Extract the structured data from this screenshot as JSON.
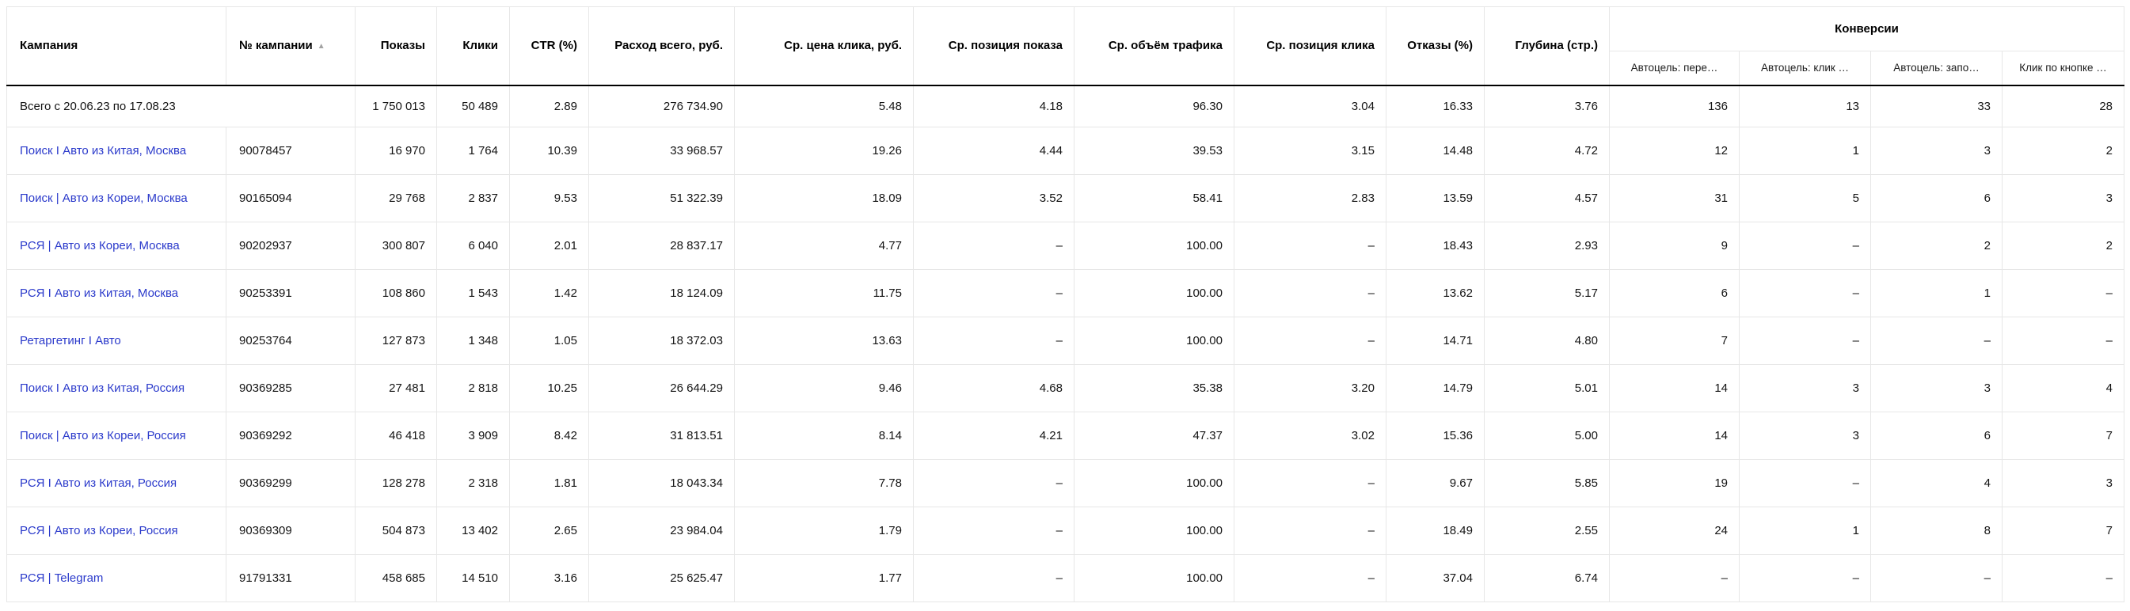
{
  "table": {
    "totals": {
      "label": "Всего с 20.06.23 по 17.08.23",
      "values": [
        "1 750 013",
        "50 489",
        "2.89",
        "276 734.90",
        "5.48",
        "4.18",
        "96.30",
        "3.04",
        "16.33",
        "3.76",
        "136",
        "13",
        "33",
        "28"
      ]
    },
    "headers": {
      "campaign": "Кампания",
      "campaign_id": "№ кампании",
      "sort_icon": "▲",
      "metrics": [
        "Показы",
        "Клики",
        "CTR (%)",
        "Расход всего, руб.",
        "Ср. цена клика, руб.",
        "Ср. позиция показа",
        "Ср. объём трафика",
        "Ср. позиция клика",
        "Отказы (%)",
        "Глубина (стр.)"
      ],
      "conversions_group": "Конверсии",
      "conversions": [
        "Автоцель: пере…",
        "Автоцель: клик …",
        "Автоцель: запо…",
        "Клик по кнопке …"
      ]
    },
    "rows": [
      {
        "campaign": "Поиск I Авто из Китая, Москва",
        "values": [
          "90078457",
          "16 970",
          "1 764",
          "10.39",
          "33 968.57",
          "19.26",
          "4.44",
          "39.53",
          "3.15",
          "14.48",
          "4.72",
          "12",
          "1",
          "3",
          "2"
        ]
      },
      {
        "campaign": "Поиск | Авто из Кореи, Москва",
        "values": [
          "90165094",
          "29 768",
          "2 837",
          "9.53",
          "51 322.39",
          "18.09",
          "3.52",
          "58.41",
          "2.83",
          "13.59",
          "4.57",
          "31",
          "5",
          "6",
          "3"
        ]
      },
      {
        "campaign": "РСЯ | Авто из Кореи, Москва",
        "values": [
          "90202937",
          "300 807",
          "6 040",
          "2.01",
          "28 837.17",
          "4.77",
          "–",
          "100.00",
          "–",
          "18.43",
          "2.93",
          "9",
          "–",
          "2",
          "2"
        ]
      },
      {
        "campaign": "РСЯ I Авто из Китая, Москва",
        "values": [
          "90253391",
          "108 860",
          "1 543",
          "1.42",
          "18 124.09",
          "11.75",
          "–",
          "100.00",
          "–",
          "13.62",
          "5.17",
          "6",
          "–",
          "1",
          "–"
        ]
      },
      {
        "campaign": "Ретаргетинг I Авто",
        "values": [
          "90253764",
          "127 873",
          "1 348",
          "1.05",
          "18 372.03",
          "13.63",
          "–",
          "100.00",
          "–",
          "14.71",
          "4.80",
          "7",
          "–",
          "–",
          "–"
        ]
      },
      {
        "campaign": "Поиск I Авто из Китая, Россия",
        "values": [
          "90369285",
          "27 481",
          "2 818",
          "10.25",
          "26 644.29",
          "9.46",
          "4.68",
          "35.38",
          "3.20",
          "14.79",
          "5.01",
          "14",
          "3",
          "3",
          "4"
        ]
      },
      {
        "campaign": "Поиск | Авто из Кореи, Россия",
        "values": [
          "90369292",
          "46 418",
          "3 909",
          "8.42",
          "31 813.51",
          "8.14",
          "4.21",
          "47.37",
          "3.02",
          "15.36",
          "5.00",
          "14",
          "3",
          "6",
          "7"
        ]
      },
      {
        "campaign": "РСЯ I Авто из Китая, Россия",
        "values": [
          "90369299",
          "128 278",
          "2 318",
          "1.81",
          "18 043.34",
          "7.78",
          "–",
          "100.00",
          "–",
          "9.67",
          "5.85",
          "19",
          "–",
          "4",
          "3"
        ]
      },
      {
        "campaign": "РСЯ | Авто из Кореи, Россия",
        "values": [
          "90369309",
          "504 873",
          "13 402",
          "2.65",
          "23 984.04",
          "1.79",
          "–",
          "100.00",
          "–",
          "18.49",
          "2.55",
          "24",
          "1",
          "8",
          "7"
        ]
      },
      {
        "campaign": "РСЯ | Telegram",
        "values": [
          "91791331",
          "458 685",
          "14 510",
          "3.16",
          "25 625.47",
          "1.77",
          "–",
          "100.00",
          "–",
          "37.04",
          "6.74",
          "–",
          "–",
          "–",
          "–"
        ]
      }
    ]
  },
  "colors": {
    "link": "#2b3acb",
    "body_text": "#141414",
    "header_text": "#000000",
    "border": "#e7e7e7",
    "header_divider": "#000000",
    "sort_icon": "#a3a3a3",
    "background": "#ffffff"
  }
}
